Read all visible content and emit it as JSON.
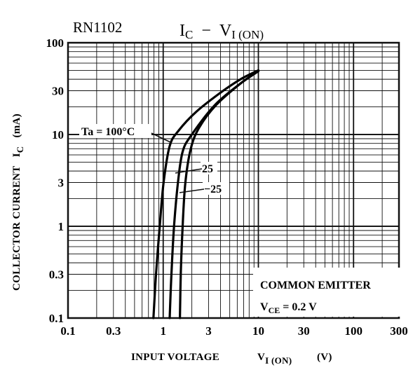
{
  "header": {
    "part_number": "RN1102",
    "title_ic": "I",
    "title_ic_sub": "C",
    "title_dash": "−",
    "title_vi": "V",
    "title_vi_sub": "I (ON)"
  },
  "note": {
    "line1": "COMMON EMITTER",
    "line2_prefix": "V",
    "line2_sub": "CE",
    "line2_value": " = 0.2 V"
  },
  "chart_data": {
    "type": "line",
    "title": "IC − VI (ON)",
    "xlabel": "INPUT VOLTAGE  VI (ON)  (V)",
    "ylabel": "COLLECTOR CURRENT  IC  (mA)",
    "x_label": {
      "text": "INPUT VOLTAGE",
      "symbol": "V",
      "symbol_sub": "I (ON)",
      "unit": "(V)"
    },
    "y_label": {
      "text": "COLLECTOR CURRENT",
      "symbol": "I",
      "symbol_sub": "C",
      "unit": "(mA)"
    },
    "xscale": "log",
    "yscale": "log",
    "xlim": [
      0.1,
      300
    ],
    "ylim": [
      0.1,
      100
    ],
    "x_ticks": [
      0.1,
      0.3,
      1,
      3,
      10,
      30,
      100,
      300
    ],
    "x_tick_labels": [
      "0.1",
      "0.3",
      "1",
      "3",
      "10",
      "30",
      "100",
      "300"
    ],
    "y_ticks": [
      0.1,
      0.3,
      1,
      3,
      10,
      30,
      100
    ],
    "y_tick_labels": [
      "0.1",
      "0.3",
      "1",
      "3",
      "10",
      "30",
      "100"
    ],
    "grid": true,
    "series": [
      {
        "name": "Ta = 100°C",
        "x": [
          0.79,
          0.84,
          0.92,
          1.01,
          1.17,
          1.45,
          2.2,
          3.9,
          6.5,
          10
        ],
        "y": [
          0.1,
          0.3,
          1,
          3,
          7.5,
          11,
          17.5,
          28,
          40,
          50
        ]
      },
      {
        "name": "25",
        "x": [
          1.17,
          1.22,
          1.3,
          1.43,
          1.6,
          2.0,
          3.5,
          6.5,
          10
        ],
        "y": [
          0.1,
          0.3,
          1,
          3,
          6.5,
          10,
          21,
          36,
          49
        ]
      },
      {
        "name": "−25",
        "x": [
          1.5,
          1.53,
          1.6,
          1.71,
          1.95,
          2.4,
          3.6,
          6.5,
          10
        ],
        "y": [
          0.1,
          0.3,
          1,
          3,
          7,
          12,
          21,
          36,
          49
        ]
      }
    ]
  }
}
